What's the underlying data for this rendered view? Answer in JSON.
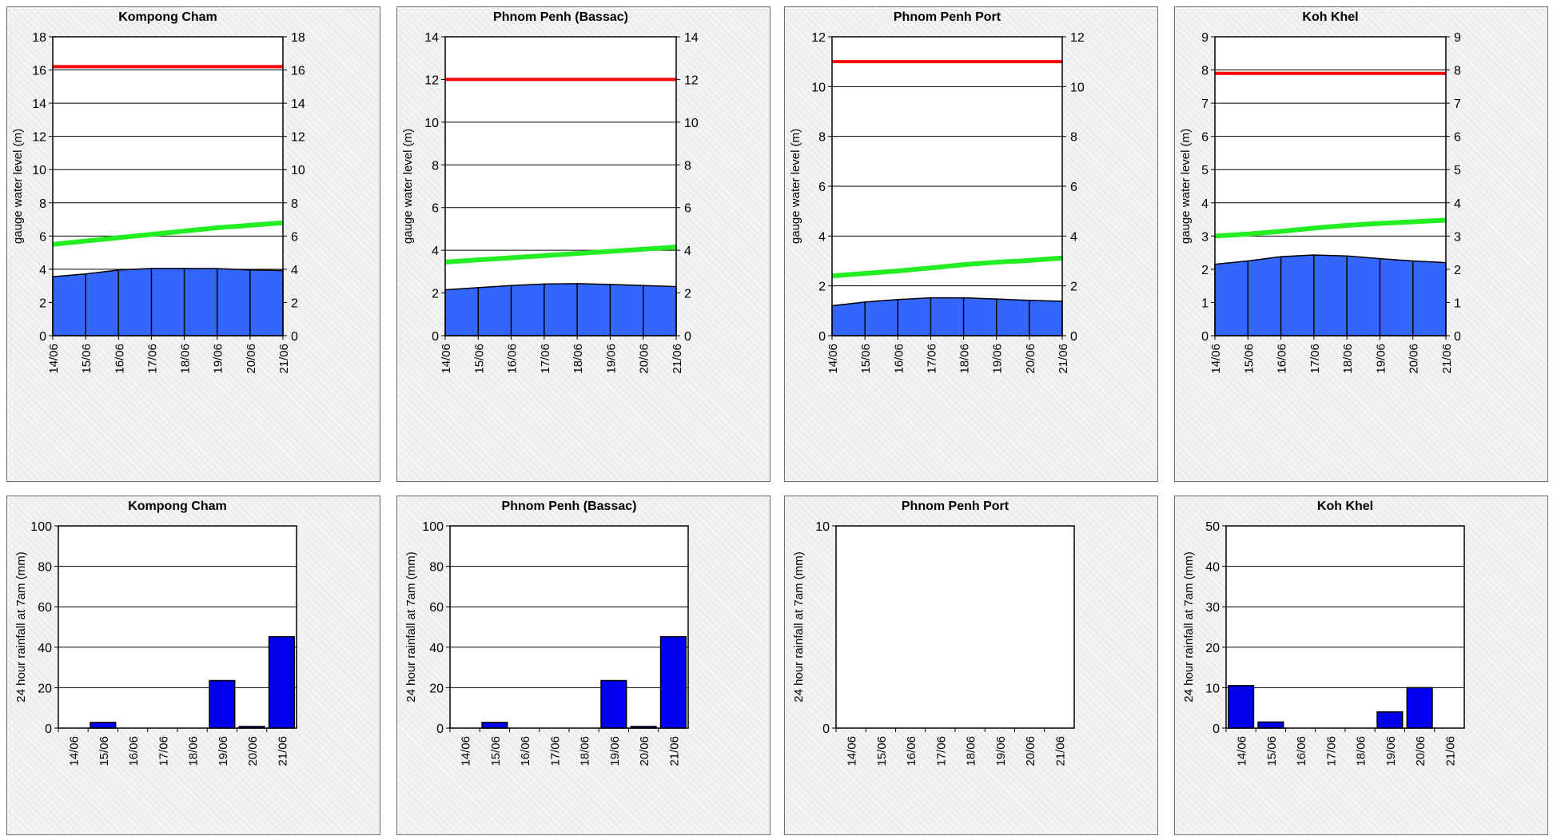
{
  "colors": {
    "level_fill": "#3366ff",
    "flood_line": "#ff0000",
    "alarm_line": "#22ee22",
    "rain_bar": "#0000ee",
    "grid": "#000000"
  },
  "charts": [
    {
      "title": "Kompong Cham",
      "chart_data": {
        "type": "area",
        "title": "Kompong Cham",
        "ylabel": "gauge water level (m)",
        "y2ticks": true,
        "categories": [
          "14/06",
          "15/06",
          "16/06",
          "17/06",
          "18/06",
          "19/06",
          "20/06",
          "21/06"
        ],
        "ylim": [
          0,
          18
        ],
        "ystep": 2,
        "series": [
          {
            "values": [
              3.55,
              3.72,
              3.95,
              4.05,
              4.05,
              4.04,
              3.95,
              3.92
            ]
          },
          {
            "values": [
              16.2,
              16.2,
              16.2,
              16.2,
              16.2,
              16.2,
              16.2,
              16.2
            ]
          },
          {
            "values": [
              5.5,
              5.7,
              5.9,
              6.1,
              6.3,
              6.5,
              6.65,
              6.8
            ]
          }
        ]
      }
    },
    {
      "title": "Phnom Penh (Bassac)",
      "chart_data": {
        "type": "area",
        "title": "Phnom Penh (Bassac)",
        "ylabel": "gauge water level (m)",
        "y2ticks": true,
        "categories": [
          "14/06",
          "15/06",
          "16/06",
          "17/06",
          "18/06",
          "19/06",
          "20/06",
          "21/06"
        ],
        "ylim": [
          0,
          14
        ],
        "ystep": 2,
        "series": [
          {
            "values": [
              2.15,
              2.25,
              2.35,
              2.42,
              2.44,
              2.4,
              2.35,
              2.3
            ]
          },
          {
            "values": [
              12.0,
              12.0,
              12.0,
              12.0,
              12.0,
              12.0,
              12.0,
              12.0
            ]
          },
          {
            "values": [
              3.45,
              3.55,
              3.65,
              3.75,
              3.85,
              3.95,
              4.05,
              4.15
            ]
          }
        ]
      }
    },
    {
      "title": "Phnom Penh Port",
      "chart_data": {
        "type": "area",
        "title": "Phnom Penh Port",
        "ylabel": "gauge water level (m)",
        "y2ticks": true,
        "categories": [
          "14/06",
          "15/06",
          "16/06",
          "17/06",
          "18/06",
          "19/06",
          "20/06",
          "21/06"
        ],
        "ylim": [
          0,
          12
        ],
        "ystep": 2,
        "series": [
          {
            "values": [
              1.2,
              1.35,
              1.45,
              1.52,
              1.52,
              1.47,
              1.42,
              1.38
            ]
          },
          {
            "values": [
              11.0,
              11.0,
              11.0,
              11.0,
              11.0,
              11.0,
              11.0,
              11.0
            ]
          },
          {
            "values": [
              2.4,
              2.5,
              2.6,
              2.72,
              2.85,
              2.95,
              3.02,
              3.12
            ]
          }
        ]
      }
    },
    {
      "title": "Koh Khel",
      "chart_data": {
        "type": "area",
        "title": "Koh Khel",
        "ylabel": "gauge water level (m)",
        "y2ticks": true,
        "categories": [
          "14/06",
          "15/06",
          "16/06",
          "17/06",
          "18/06",
          "19/06",
          "20/06",
          "21/06"
        ],
        "ylim": [
          0,
          9
        ],
        "ystep": 1,
        "series": [
          {
            "values": [
              2.15,
              2.25,
              2.38,
              2.43,
              2.4,
              2.32,
              2.25,
              2.2
            ]
          },
          {
            "values": [
              7.9,
              7.9,
              7.9,
              7.9,
              7.9,
              7.9,
              7.9,
              7.9
            ]
          },
          {
            "values": [
              3.0,
              3.06,
              3.14,
              3.24,
              3.32,
              3.38,
              3.43,
              3.48
            ]
          }
        ]
      }
    },
    {
      "title": "Kompong Cham",
      "chart_data": {
        "type": "bar",
        "title": "Kompong Cham",
        "ylabel": "24 hour rainfall at 7am (mm)",
        "y2ticks": false,
        "categories": [
          "14/06",
          "15/06",
          "16/06",
          "17/06",
          "18/06",
          "19/06",
          "20/06",
          "21/06"
        ],
        "ylim": [
          0,
          100
        ],
        "ystep": 20,
        "values": [
          0,
          2.8,
          0,
          0,
          0,
          23.5,
          0.8,
          45.2
        ]
      }
    },
    {
      "title": "Phnom Penh (Bassac)",
      "chart_data": {
        "type": "bar",
        "title": "Phnom Penh (Bassac)",
        "ylabel": "24 hour rainfall at 7am (mm)",
        "y2ticks": false,
        "categories": [
          "14/06",
          "15/06",
          "16/06",
          "17/06",
          "18/06",
          "19/06",
          "20/06",
          "21/06"
        ],
        "ylim": [
          0,
          100
        ],
        "ystep": 20,
        "values": [
          0,
          2.8,
          0,
          0,
          0,
          23.5,
          0.8,
          45.2
        ]
      }
    },
    {
      "title": "Phnom Penh Port",
      "chart_data": {
        "type": "bar",
        "title": "Phnom Penh Port",
        "ylabel": "24 hour rainfall at 7am (mm)",
        "y2ticks": false,
        "categories": [
          "14/06",
          "15/06",
          "16/06",
          "17/06",
          "18/06",
          "19/06",
          "20/06",
          "21/06"
        ],
        "ylim": [
          0,
          10
        ],
        "ystep": 10,
        "values": [
          0,
          0,
          0,
          0,
          0,
          0,
          0,
          0
        ]
      }
    },
    {
      "title": "Koh Khel",
      "chart_data": {
        "type": "bar",
        "title": "Koh Khel",
        "ylabel": "24 hour rainfall at 7am (mm)",
        "y2ticks": false,
        "categories": [
          "14/06",
          "15/06",
          "16/06",
          "17/06",
          "18/06",
          "19/06",
          "20/06",
          "21/06"
        ],
        "ylim": [
          0,
          50
        ],
        "ystep": 10,
        "values": [
          10.5,
          1.5,
          0,
          0,
          0,
          4.0,
          10.0,
          0
        ]
      }
    }
  ]
}
